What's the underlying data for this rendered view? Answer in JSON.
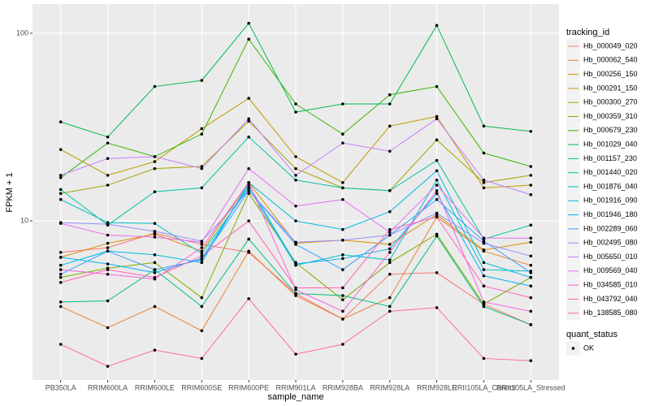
{
  "chart_data": {
    "type": "line",
    "x_label": "sample_name",
    "y_label": "FPKM + 1",
    "legend_title": "tracking_id",
    "point_legend_title": "quant_status",
    "point_legend_labels": [
      "OK"
    ],
    "log_y": true,
    "grid": true,
    "legend_position": "right",
    "point_color": "#000000",
    "categories": [
      "PB350LA",
      "RRIM600LA",
      "RRIM600LE",
      "RRIM600SE",
      "RRIM600PE",
      "RRIM901LA",
      "RRIM928BA",
      "RRIM928LA",
      "RRIM928LE",
      "RRII105LA_Control",
      "RRII105LA_Stressed"
    ],
    "ylim": [
      1.42,
      143
    ],
    "yticks": [
      10,
      100
    ],
    "series": [
      {
        "name": "Hb_000049_020",
        "color": "#F8766D",
        "values": [
          6.8,
          7.2,
          8.6,
          7.5,
          6.8,
          4.1,
          3.0,
          5.2,
          5.3,
          3.6,
          2.8
        ]
      },
      {
        "name": "Hb_000062_540",
        "color": "#EA8331",
        "values": [
          3.5,
          2.7,
          3.5,
          2.6,
          6.9,
          4.0,
          3.0,
          3.9,
          10.5,
          6.9,
          5.8
        ]
      },
      {
        "name": "Hb_000256_150",
        "color": "#D89000",
        "values": [
          6.4,
          7.6,
          8.5,
          6.9,
          16,
          7.6,
          7.9,
          7.5,
          10.8,
          7.0,
          7.7
        ]
      },
      {
        "name": "Hb_000291_150",
        "color": "#C09B00",
        "values": [
          24,
          17.5,
          20.7,
          31,
          45,
          22,
          16,
          32,
          36,
          15,
          15.5
        ]
      },
      {
        "name": "Hb_000300_270",
        "color": "#A3A500",
        "values": [
          14,
          15.5,
          19,
          19.5,
          34,
          19,
          15,
          14.5,
          27,
          16,
          17.5
        ]
      },
      {
        "name": "Hb_000359_310",
        "color": "#7CAE00",
        "values": [
          5.0,
          5.6,
          6.0,
          3.9,
          14,
          6.0,
          3.8,
          6.0,
          8.5,
          3.6,
          5.0
        ]
      },
      {
        "name": "Hb_000679_230",
        "color": "#39B600",
        "values": [
          17,
          26,
          22,
          29,
          93,
          42,
          29,
          47,
          52,
          23,
          19.5
        ]
      },
      {
        "name": "Hb_001029_040",
        "color": "#00BB4E",
        "values": [
          33.7,
          28,
          52,
          56,
          113,
          38,
          42,
          42,
          110,
          32,
          30
        ]
      },
      {
        "name": "Hb_001157_230",
        "color": "#00BF7D",
        "values": [
          3.7,
          3.75,
          5.5,
          3.5,
          8.0,
          4.1,
          4.0,
          3.5,
          8.3,
          3.5,
          2.8
        ]
      },
      {
        "name": "Hb_001440_020",
        "color": "#00C1A3",
        "values": [
          14.7,
          9.5,
          14.3,
          15,
          28,
          16.5,
          15,
          14.5,
          21,
          8.0,
          9.5
        ]
      },
      {
        "name": "Hb_001876_040",
        "color": "#00BFC4",
        "values": [
          13,
          9.8,
          9.7,
          6.7,
          15,
          5.8,
          6.6,
          6.2,
          16.5,
          5.5,
          5.4
        ]
      },
      {
        "name": "Hb_001916_090",
        "color": "#00BAE0",
        "values": [
          5.8,
          6.9,
          6.6,
          6.0,
          16,
          10,
          9.0,
          11.2,
          18.5,
          6.0,
          5.0
        ]
      },
      {
        "name": "Hb_001946_180",
        "color": "#00B0F6",
        "values": [
          6.4,
          5.9,
          5.3,
          6.3,
          15.5,
          5.9,
          6.3,
          7.1,
          14,
          5.1,
          4.5
        ]
      },
      {
        "name": "Hb_002289_060",
        "color": "#35A2FF",
        "values": [
          5.2,
          6.9,
          5.5,
          6.2,
          14.5,
          7.5,
          5.5,
          8.4,
          13,
          7.8,
          5.3
        ]
      },
      {
        "name": "Hb_002495_080",
        "color": "#9590FF",
        "values": [
          9.8,
          9.6,
          8.8,
          7.8,
          14.5,
          7.7,
          7.9,
          8.4,
          11,
          7.6,
          6.5
        ]
      },
      {
        "name": "Hb_005650_010",
        "color": "#C77CFF",
        "values": [
          17.5,
          21.5,
          22,
          19,
          35,
          17.5,
          26,
          23.5,
          35,
          16.5,
          13.8
        ]
      },
      {
        "name": "Hb_009569_040",
        "color": "#E76BF3",
        "values": [
          9.7,
          8.4,
          8.2,
          7.7,
          19,
          12,
          13,
          8.7,
          15.5,
          8.1,
          8.1
        ]
      },
      {
        "name": "Hb_034585_010",
        "color": "#FA62DB",
        "values": [
          5.5,
          5.2,
          4.9,
          7.2,
          16,
          4.3,
          3.3,
          6.8,
          14.5,
          3.7,
          3.3
        ]
      },
      {
        "name": "Hb_043792_040",
        "color": "#FF62BC",
        "values": [
          4.7,
          5.5,
          5.0,
          6.5,
          10,
          4.4,
          4.4,
          9.0,
          10.5,
          4.5,
          3.9
        ]
      },
      {
        "name": "Hb_138585_080",
        "color": "#FF6C91",
        "values": [
          2.2,
          1.68,
          2.05,
          1.85,
          3.85,
          1.95,
          2.2,
          3.3,
          3.45,
          1.85,
          1.8
        ]
      }
    ]
  }
}
